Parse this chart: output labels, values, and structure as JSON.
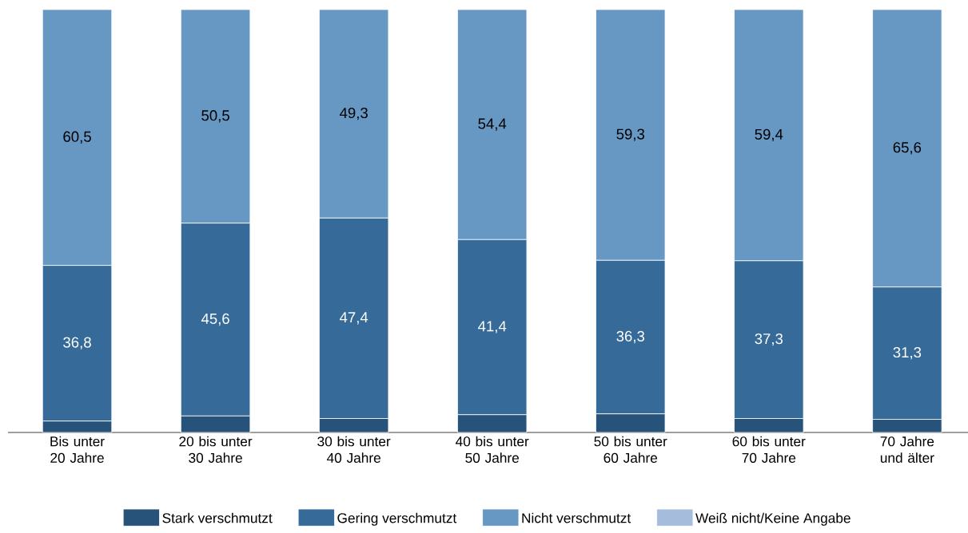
{
  "chart_data": {
    "type": "bar",
    "stacked": true,
    "categories": [
      "Bis unter 20 Jahre",
      "20 bis unter 30 Jahre",
      "30 bis unter 40 Jahre",
      "40 bis unter 50 Jahre",
      "50 bis unter 60 Jahre",
      "60 bis unter 70 Jahre",
      "70 Jahre und älter"
    ],
    "series": [
      {
        "name": "Stark verschmutzt",
        "color": "#27527a",
        "values": [
          2.7,
          3.9,
          3.3,
          4.2,
          4.4,
          3.3,
          3.1
        ]
      },
      {
        "name": "Gering verschmutzt",
        "color": "#366a99",
        "values": [
          36.8,
          45.6,
          47.4,
          41.4,
          36.3,
          37.3,
          31.3
        ],
        "value_labels": [
          "36,8",
          "45,6",
          "47,4",
          "41,4",
          "36,3",
          "37,3",
          "31,3"
        ]
      },
      {
        "name": "Nicht verschmutzt",
        "color": "#6798c4",
        "values": [
          60.5,
          50.5,
          49.3,
          54.4,
          59.3,
          59.4,
          65.6
        ],
        "value_labels": [
          "60,5",
          "50,5",
          "49,3",
          "54,4",
          "59,3",
          "59,4",
          "65,6"
        ]
      },
      {
        "name": "Weiß nicht/Keine Angabe",
        "color": "#a6bcdd",
        "values": [
          0,
          0,
          0,
          0,
          0,
          0,
          0
        ]
      }
    ],
    "legend": "bottom"
  }
}
